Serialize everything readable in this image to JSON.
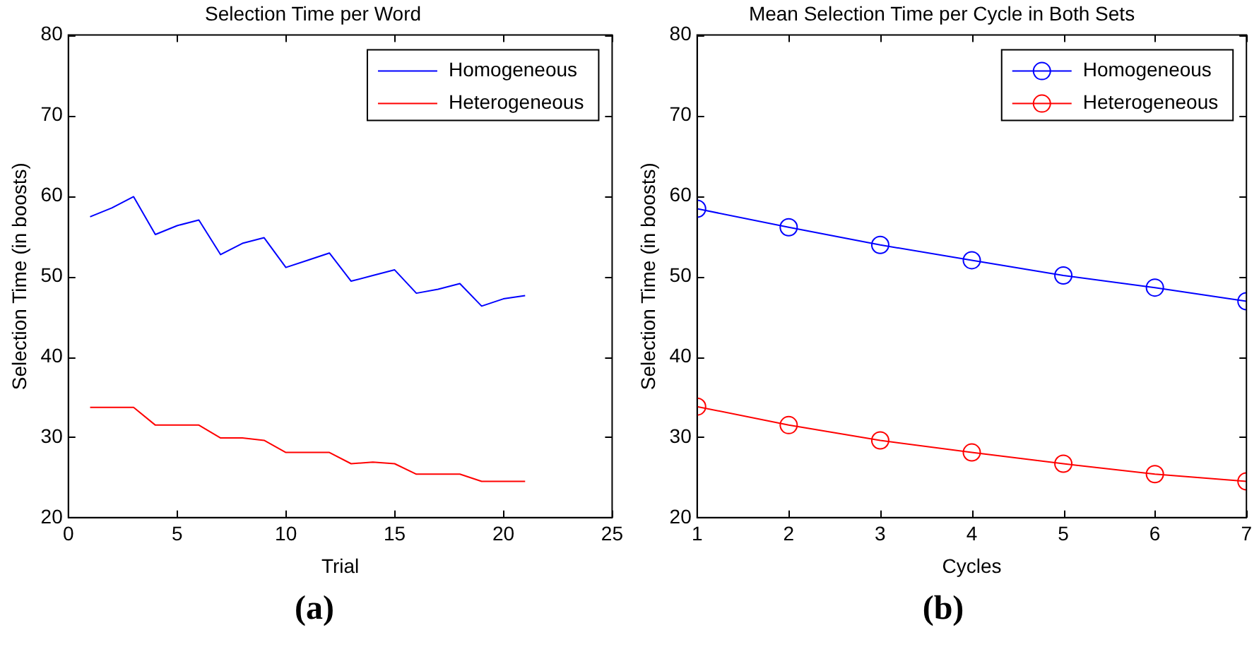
{
  "chart_data": [
    {
      "type": "line",
      "title": "Selection Time per Word",
      "xlabel": "Trial",
      "ylabel": "Selection Time (in boosts)",
      "x": [
        1,
        2,
        3,
        4,
        5,
        6,
        7,
        8,
        9,
        10,
        11,
        12,
        13,
        14,
        15,
        16,
        17,
        18,
        19,
        20,
        21
      ],
      "series": [
        {
          "name": "Homogeneous",
          "color": "#0000ff",
          "values": [
            57.4,
            58.5,
            59.9,
            55.2,
            56.3,
            57.0,
            52.7,
            54.1,
            54.8,
            51.1,
            52.0,
            52.9,
            49.4,
            50.1,
            50.8,
            47.9,
            48.4,
            49.1,
            46.3,
            47.2,
            47.6
          ]
        },
        {
          "name": "Heterogeneous",
          "color": "#ff0000",
          "values": [
            33.7,
            33.7,
            33.7,
            31.5,
            31.5,
            31.5,
            29.9,
            29.9,
            29.6,
            28.1,
            28.1,
            28.1,
            26.7,
            26.9,
            26.7,
            25.4,
            25.4,
            25.4,
            24.5,
            24.5,
            24.5
          ]
        }
      ],
      "xlim": [
        0,
        25
      ],
      "xticks": [
        0,
        5,
        10,
        15,
        20,
        25
      ],
      "ylim": [
        20,
        80
      ],
      "yticks": [
        20,
        30,
        40,
        50,
        60,
        70,
        80
      ],
      "grid": false,
      "legend": "top right",
      "marker": "none",
      "line_style": "solid",
      "annotations": [
        "(a)"
      ]
    },
    {
      "type": "line",
      "title": "Mean Selection Time per Cycle in Both Sets",
      "xlabel": "Cycles",
      "ylabel": "Selection Time (in boosts)",
      "x": [
        1,
        2,
        3,
        4,
        5,
        6,
        7
      ],
      "series": [
        {
          "name": "Homogeneous",
          "color": "#0000ff",
          "values": [
            58.4,
            56.1,
            53.9,
            52.0,
            50.1,
            48.6,
            46.9
          ]
        },
        {
          "name": "Heterogeneous",
          "color": "#ff0000",
          "values": [
            33.8,
            31.5,
            29.6,
            28.1,
            26.7,
            25.4,
            24.5
          ]
        }
      ],
      "xlim": [
        1,
        7
      ],
      "xticks": [
        1,
        2,
        3,
        4,
        5,
        6,
        7
      ],
      "ylim": [
        20,
        80
      ],
      "yticks": [
        20,
        30,
        40,
        50,
        60,
        70,
        80
      ],
      "grid": false,
      "legend": "top right",
      "marker": "circle",
      "line_style": "solid",
      "annotations": [
        "(b)"
      ]
    }
  ]
}
